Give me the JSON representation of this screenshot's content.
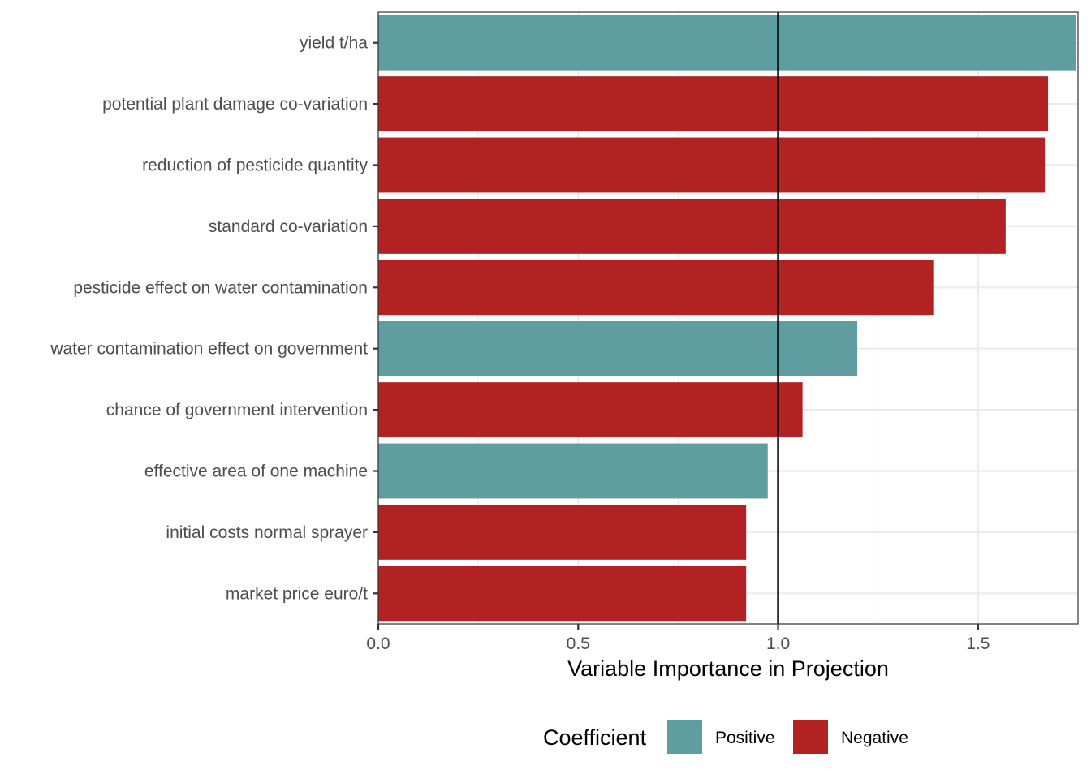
{
  "chart_data": {
    "type": "bar",
    "orientation": "horizontal",
    "xlabel": "Variable Importance in Projection",
    "ylabel": "",
    "xlim": [
      0,
      1.75
    ],
    "xticks": [
      "0.0",
      "0.5",
      "1.0",
      "1.5"
    ],
    "reference_line": 1.0,
    "grid": true,
    "legend": {
      "title": "Coefficient",
      "position": "bottom",
      "entries": [
        {
          "label": "Positive",
          "color": "#5F9EA0"
        },
        {
          "label": "Negative",
          "color": "#B22222"
        }
      ]
    },
    "categories": [
      "yield t/ha",
      "potential plant damage co-variation",
      "reduction of pesticide quantity",
      "standard co-variation",
      "pesticide effect on water contamination",
      "water contamination effect on government",
      "chance of government intervention",
      "effective area of one machine",
      "initial costs normal sprayer",
      "market price euro/t"
    ],
    "values": [
      1.745,
      1.675,
      1.667,
      1.569,
      1.388,
      1.198,
      1.061,
      0.974,
      0.92,
      0.92
    ],
    "coefficient": [
      "Positive",
      "Negative",
      "Negative",
      "Negative",
      "Negative",
      "Positive",
      "Negative",
      "Positive",
      "Negative",
      "Negative"
    ]
  }
}
